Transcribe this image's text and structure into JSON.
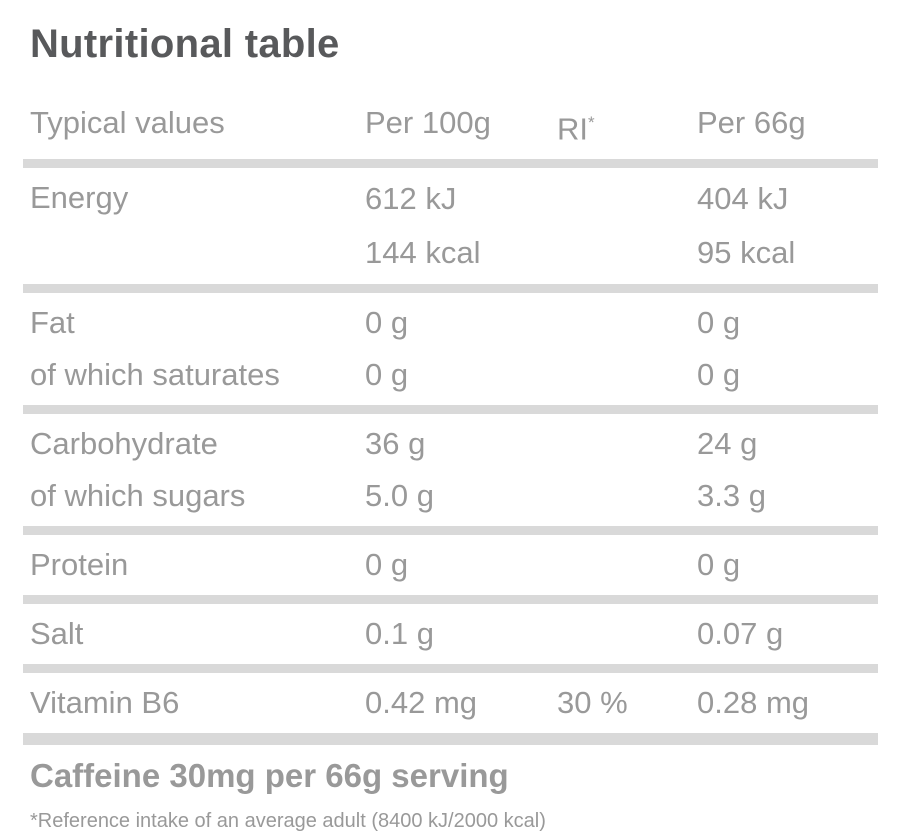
{
  "title": "Nutritional table",
  "colors": {
    "background": "#ffffff",
    "title_text": "#58595b",
    "body_text": "#999999",
    "rule": "#d9d9d9"
  },
  "table": {
    "headers": {
      "typical_values": "Typical values",
      "per_100g": "Per 100g",
      "ri_base": "RI",
      "ri_sup": "*",
      "per_serving": "Per 66g"
    },
    "rows": [
      {
        "label": "Energy",
        "per100_line1": "612 kJ",
        "per100_line2": "144 kcal",
        "ri": "",
        "serving_line1": "404 kJ",
        "serving_line2": "95 kcal"
      },
      {
        "label": "Fat",
        "per100": "0 g",
        "ri": "",
        "serving": "0 g"
      },
      {
        "label": "of which saturates",
        "per100": "0 g",
        "ri": "",
        "serving": "0 g"
      },
      {
        "label": "Carbohydrate",
        "per100": "36 g",
        "ri": "",
        "serving": "24 g"
      },
      {
        "label": "of which sugars",
        "per100": "5.0 g",
        "ri": "",
        "serving": "3.3 g"
      },
      {
        "label": "Protein",
        "per100": "0 g",
        "ri": "",
        "serving": "0 g"
      },
      {
        "label": "Salt",
        "per100": "0.1 g",
        "ri": "",
        "serving": "0.07 g"
      },
      {
        "label": "Vitamin B6",
        "per100": "0.42 mg",
        "ri": "30 %",
        "serving": "0.28 mg"
      }
    ]
  },
  "caffeine_note": "Caffeine 30mg per 66g serving",
  "footnote": "*Reference intake of an average adult (8400 kJ/2000 kcal)"
}
